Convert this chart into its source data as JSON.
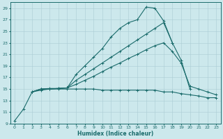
{
  "xlabel": "Humidex (Indice chaleur)",
  "bg_color": "#cce8ec",
  "grid_color": "#aacdd4",
  "line_color": "#1a6b6b",
  "xlim": [
    -0.5,
    23.5
  ],
  "ylim": [
    9,
    30
  ],
  "xticks": [
    0,
    1,
    2,
    3,
    4,
    5,
    6,
    7,
    8,
    9,
    10,
    11,
    12,
    13,
    14,
    15,
    16,
    17,
    18,
    19,
    20,
    21,
    22,
    23
  ],
  "yticks": [
    9,
    11,
    13,
    15,
    17,
    19,
    21,
    23,
    25,
    27,
    29
  ],
  "series": [
    {
      "x": [
        0,
        1,
        2,
        3,
        4,
        5,
        6,
        7,
        8,
        9,
        10,
        11,
        12,
        13,
        14,
        15,
        16,
        17,
        18
      ],
      "y": [
        9.5,
        11.5,
        14.5,
        14.8,
        15.0,
        15.1,
        15.2,
        17.5,
        19.0,
        20.5,
        22.0,
        24.0,
        25.5,
        26.5,
        27.0,
        29.2,
        29.0,
        26.8,
        23.0
      ]
    },
    {
      "x": [
        2,
        3,
        4,
        5,
        6,
        7,
        8,
        9,
        10,
        11,
        12,
        13,
        14,
        15,
        16,
        17,
        18,
        19,
        20
      ],
      "y": [
        14.5,
        15.0,
        15.0,
        15.1,
        15.2,
        16.5,
        17.5,
        18.5,
        19.5,
        20.5,
        21.5,
        22.5,
        23.5,
        24.5,
        25.5,
        26.5,
        23.0,
        20.0,
        15.0
      ]
    },
    {
      "x": [
        2,
        3,
        4,
        5,
        6,
        7,
        8,
        9,
        10,
        11,
        12,
        13,
        14,
        15,
        16,
        17,
        18,
        19,
        20,
        21,
        22,
        23
      ],
      "y": [
        14.5,
        15.0,
        15.1,
        15.1,
        15.2,
        15.8,
        16.5,
        17.2,
        18.0,
        18.8,
        19.5,
        20.3,
        21.0,
        21.8,
        22.5,
        23.0,
        21.5,
        19.5,
        15.5,
        15.0,
        14.5,
        14.0
      ]
    },
    {
      "x": [
        2,
        3,
        4,
        5,
        6,
        7,
        8,
        9,
        10,
        11,
        12,
        13,
        14,
        15,
        16,
        17,
        18,
        19,
        20,
        21,
        22,
        23
      ],
      "y": [
        14.5,
        15.0,
        15.0,
        15.0,
        15.0,
        15.0,
        15.0,
        15.0,
        14.8,
        14.8,
        14.8,
        14.8,
        14.8,
        14.8,
        14.8,
        14.5,
        14.5,
        14.2,
        14.0,
        13.8,
        13.5,
        13.5
      ]
    }
  ]
}
